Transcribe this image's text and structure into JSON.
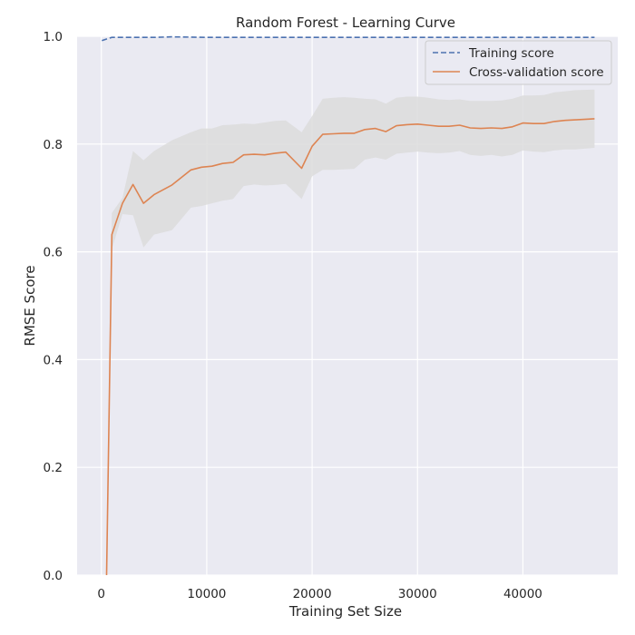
{
  "chart_data": {
    "type": "line",
    "title": "Random Forest - Learning Curve",
    "xlabel": "Training Set Size",
    "ylabel": "RMSE Score",
    "xlim": [
      -2300,
      49000
    ],
    "ylim": [
      0.0,
      1.0
    ],
    "xticks": [
      0,
      10000,
      20000,
      30000,
      40000
    ],
    "xtick_labels": [
      "0",
      "10000",
      "20000",
      "30000",
      "40000"
    ],
    "yticks": [
      0.0,
      0.2,
      0.4,
      0.6,
      0.8,
      1.0
    ],
    "ytick_labels": [
      "0.0",
      "0.2",
      "0.4",
      "0.6",
      "0.8",
      "1.0"
    ],
    "grid": true,
    "background": "#eaeaf2",
    "legend_position": "top-right",
    "series": [
      {
        "name": "Training score",
        "color": "#4c72b0",
        "style": "dashed",
        "x": [
          50,
          500,
          1000,
          2000,
          3000,
          4000,
          5000,
          6700,
          10000,
          20000,
          30000,
          40000,
          46800
        ],
        "y": [
          0.992,
          0.995,
          0.998,
          0.998,
          0.998,
          0.998,
          0.998,
          0.999,
          0.998,
          0.998,
          0.998,
          0.998,
          0.998
        ]
      },
      {
        "name": "Cross-validation score",
        "color": "#dd8452",
        "style": "solid",
        "x": [
          500,
          1000,
          2000,
          3000,
          4000,
          5000,
          6700,
          8500,
          9500,
          10500,
          11500,
          12500,
          13500,
          14500,
          15500,
          16500,
          17500,
          19000,
          20000,
          21000,
          22000,
          23000,
          24000,
          25000,
          26000,
          27000,
          28000,
          29000,
          30000,
          31000,
          32000,
          33000,
          34000,
          35000,
          36000,
          37000,
          38000,
          39000,
          40000,
          41000,
          42000,
          43000,
          44000,
          45000,
          46800
        ],
        "y": [
          0.0,
          0.632,
          0.69,
          0.725,
          0.69,
          0.706,
          0.724,
          0.752,
          0.757,
          0.759,
          0.764,
          0.766,
          0.78,
          0.781,
          0.78,
          0.783,
          0.785,
          0.755,
          0.796,
          0.818,
          0.819,
          0.82,
          0.82,
          0.827,
          0.829,
          0.823,
          0.834,
          0.836,
          0.837,
          0.835,
          0.833,
          0.833,
          0.835,
          0.83,
          0.829,
          0.83,
          0.829,
          0.832,
          0.839,
          0.838,
          0.838,
          0.842,
          0.844,
          0.845,
          0.847
        ],
        "band_upper": [
          0.0,
          0.672,
          0.7,
          0.787,
          0.77,
          0.787,
          0.807,
          0.822,
          0.829,
          0.829,
          0.835,
          0.836,
          0.838,
          0.837,
          0.84,
          0.843,
          0.844,
          0.822,
          0.852,
          0.884,
          0.886,
          0.887,
          0.886,
          0.884,
          0.883,
          0.875,
          0.886,
          0.888,
          0.888,
          0.886,
          0.883,
          0.882,
          0.883,
          0.88,
          0.88,
          0.88,
          0.881,
          0.884,
          0.89,
          0.89,
          0.891,
          0.896,
          0.898,
          0.9,
          0.901
        ],
        "band_lower": [
          0.0,
          0.605,
          0.67,
          0.668,
          0.608,
          0.632,
          0.64,
          0.682,
          0.685,
          0.69,
          0.695,
          0.698,
          0.722,
          0.725,
          0.723,
          0.724,
          0.726,
          0.698,
          0.74,
          0.752,
          0.752,
          0.753,
          0.754,
          0.771,
          0.775,
          0.771,
          0.782,
          0.784,
          0.786,
          0.784,
          0.783,
          0.784,
          0.787,
          0.78,
          0.778,
          0.78,
          0.777,
          0.78,
          0.788,
          0.786,
          0.785,
          0.788,
          0.79,
          0.79,
          0.793
        ]
      }
    ]
  }
}
